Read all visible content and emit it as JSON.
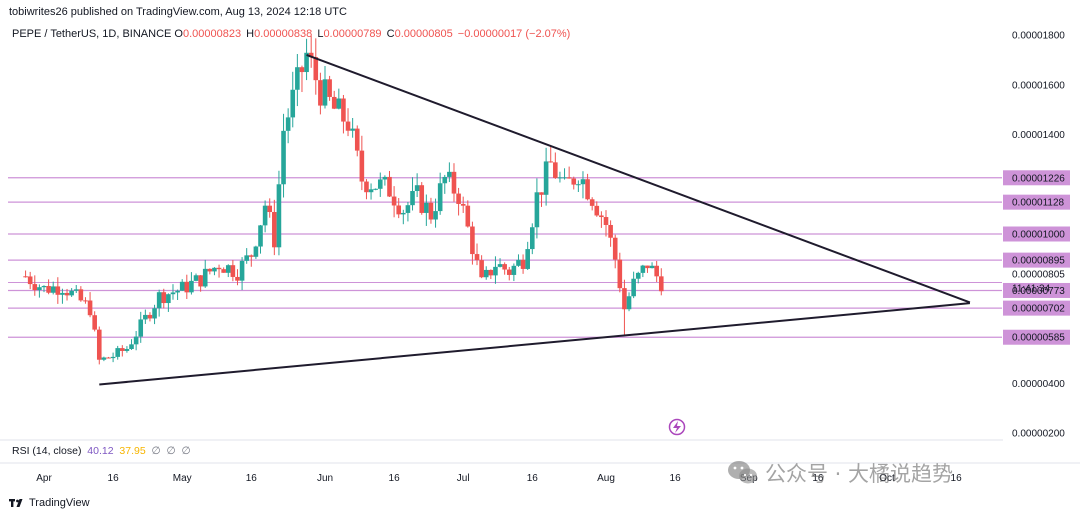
{
  "header": {
    "published": "tobiwrites26 published on TradingView.com, Aug 13, 2024 12:18 UTC"
  },
  "legend": {
    "symbol": "PEPE / TetherUS, 1D, BINANCE",
    "open_label": "O",
    "open": "0.00000823",
    "high_label": "H",
    "high": "0.00000838",
    "low_label": "L",
    "low": "0.00000789",
    "close_label": "C",
    "close": "0.00000805",
    "change": "−0.00000017 (−2.07%)"
  },
  "rsi": {
    "label": "RSI (14, close)",
    "value1": "40.12",
    "value2": "37.95",
    "value3": "∅",
    "value4": "∅",
    "value5": "∅"
  },
  "footer": {
    "brand": "TradingView"
  },
  "watermark": {
    "text": "公众号 · 大橘说趋势"
  },
  "colors": {
    "up": "#26a69a",
    "down": "#ef5350",
    "level_line": "#ce93d8",
    "level_label_bg": "#ce93d8",
    "trendline": "#1f1b2d"
  },
  "chart_data": {
    "type": "candlestick",
    "symbol": "PEPE / TetherUS",
    "interval": "1D",
    "y_axis_ticks": [
      "0.00001800",
      "0.00001600",
      "0.00001400",
      "0.00000400",
      "0.00000200"
    ],
    "ylim": [
      1.5e-06,
      1.84e-05
    ],
    "x_axis_ticks": [
      "Apr",
      "16",
      "May",
      "16",
      "Jun",
      "16",
      "Jul",
      "16",
      "Aug",
      "16",
      "Sep",
      "16",
      "Oct",
      "16"
    ],
    "horizontal_levels": [
      {
        "value": 1.226e-05,
        "label": "0.00001226"
      },
      {
        "value": 1.128e-05,
        "label": "0.00001128"
      },
      {
        "value": 1e-05,
        "label": "0.00001000"
      },
      {
        "value": 8.95e-06,
        "label": "0.00000895"
      },
      {
        "value": 7.73e-06,
        "label": "0.00000773"
      },
      {
        "value": 7.02e-06,
        "label": "0.00000702"
      },
      {
        "value": 5.85e-06,
        "label": "0.00000585"
      }
    ],
    "last_price": {
      "value": 8.05e-06,
      "label": "0.00000805",
      "countdown": "11:41:34"
    },
    "trendlines": [
      {
        "name": "descending",
        "from": {
          "date": "May 28",
          "value": 1.72e-05
        },
        "to": {
          "date": "Oct 19",
          "value": 7.25e-06
        }
      },
      {
        "name": "ascending",
        "from": {
          "date": "Apr 13",
          "value": 3.95e-06
        },
        "to": {
          "date": "Oct 19",
          "value": 7.22e-06
        }
      }
    ],
    "closes_sample": [
      {
        "date": "Apr 1",
        "close": 7.8e-06
      },
      {
        "date": "Apr 14",
        "close": 4.9e-06
      },
      {
        "date": "May 1",
        "close": 7.8e-06
      },
      {
        "date": "May 16",
        "close": 9e-06
      },
      {
        "date": "May 27",
        "close": 1.72e-05
      },
      {
        "date": "Jun 10",
        "close": 1.2e-05
      },
      {
        "date": "Jul 5",
        "close": 8e-06
      },
      {
        "date": "Jul 20",
        "close": 1.28e-05
      },
      {
        "date": "Aug 5",
        "close": 7e-06
      },
      {
        "date": "Aug 13",
        "close": 8.05e-06
      }
    ]
  }
}
